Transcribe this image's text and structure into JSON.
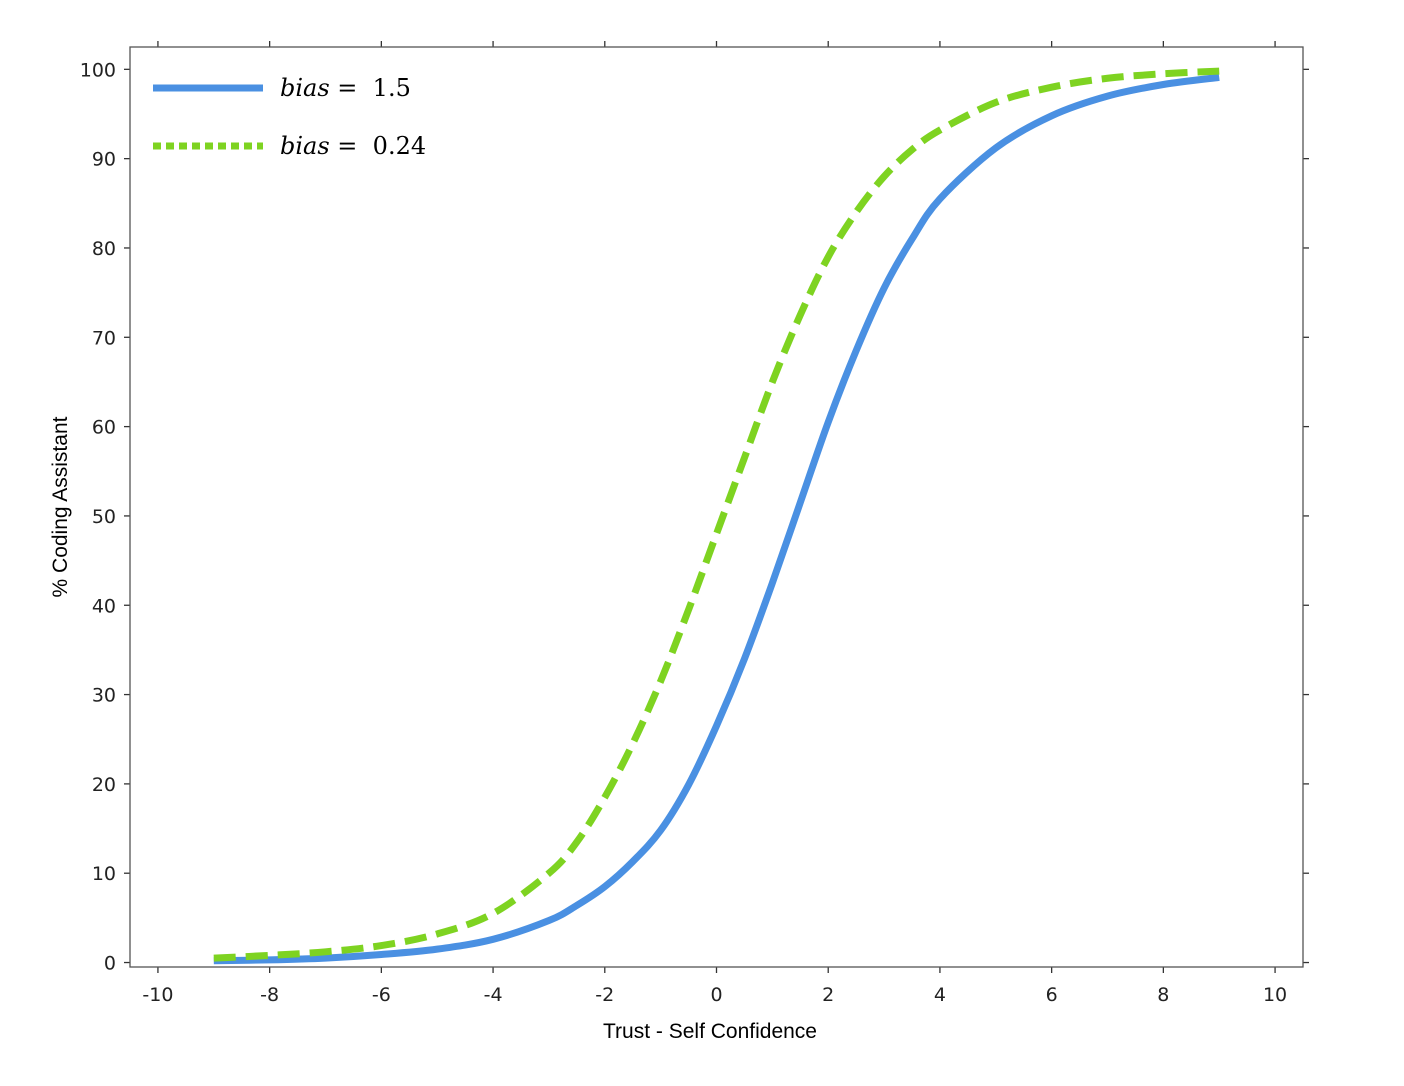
{
  "chart_data": {
    "type": "line",
    "title": "",
    "xlabel": "Trust - Self Confidence",
    "ylabel": "% Coding Assistant",
    "xlim": [
      -10.5,
      10.5
    ],
    "ylim": [
      -0.5,
      102.5
    ],
    "x_ticks": [
      -10,
      -8,
      -6,
      -4,
      -2,
      0,
      2,
      4,
      6,
      8,
      10
    ],
    "y_ticks": [
      0,
      10,
      20,
      30,
      40,
      50,
      60,
      70,
      80,
      90,
      100
    ],
    "x_tick_labels": [
      "-10",
      "-8",
      "-6",
      "-4",
      "-2",
      "0",
      "2",
      "4",
      "6",
      "8",
      "10"
    ],
    "y_tick_labels": [
      "0",
      "10",
      "20",
      "30",
      "40",
      "50",
      "60",
      "70",
      "80",
      "90",
      "100"
    ],
    "grid": false,
    "legend_position": "top-left",
    "series": [
      {
        "legend_label": "bias = 1.5",
        "legend_var": "bias",
        "legend_eq": " = ",
        "legend_value": "1.5",
        "color": "#4a90e2",
        "style": "solid",
        "x": [
          -9,
          -8,
          -7,
          -6,
          -5,
          -4,
          -3,
          -2.5,
          -2,
          -1.5,
          -1,
          -0.5,
          0,
          0.5,
          1,
          1.5,
          2,
          2.5,
          3,
          3.5,
          4,
          5,
          6,
          7,
          8,
          9
        ],
        "y": [
          0.2,
          0.3,
          0.5,
          0.9,
          1.5,
          2.6,
          4.7,
          6.4,
          8.5,
          11.3,
          14.8,
          19.9,
          26.5,
          34.0,
          42.5,
          51.5,
          60.5,
          68.5,
          75.5,
          81.0,
          85.5,
          91.2,
          94.8,
          97.0,
          98.3,
          99.1
        ]
      },
      {
        "legend_label": "bias = 0.24",
        "legend_var": "bias",
        "legend_eq": " = ",
        "legend_value": "0.24",
        "color": "#7ed321",
        "style": "dashed",
        "x": [
          -9,
          -8,
          -7,
          -6,
          -5,
          -4,
          -3,
          -2.5,
          -2,
          -1.5,
          -1,
          -0.5,
          0,
          0.5,
          1,
          1.5,
          2,
          2.5,
          3,
          3.5,
          4,
          5,
          6,
          7,
          8,
          9
        ],
        "y": [
          0.5,
          0.8,
          1.2,
          1.9,
          3.2,
          5.5,
          10.0,
          13.5,
          18.5,
          24.5,
          31.5,
          39.5,
          48.0,
          56.5,
          65.0,
          72.5,
          79.0,
          84.0,
          88.0,
          91.0,
          93.2,
          96.3,
          98.0,
          99.0,
          99.5,
          99.8
        ]
      }
    ]
  }
}
